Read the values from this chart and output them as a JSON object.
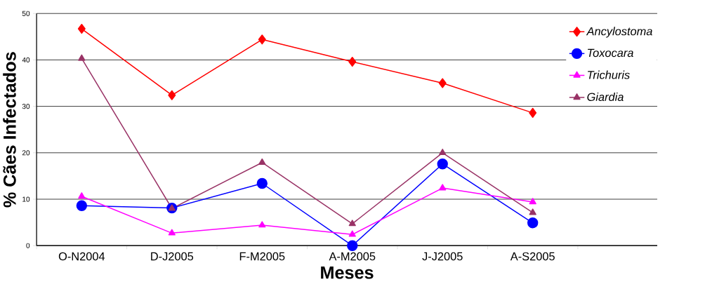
{
  "chart_data": {
    "type": "line",
    "xlabel": "Meses",
    "ylabel": "% Cães Infectados",
    "categories": [
      "O-N2004",
      "D-J2005",
      "F-M2005",
      "A-M2005",
      "J-J2005",
      "A-S2005"
    ],
    "series": [
      {
        "name": "Ancylostoma",
        "color": "#ff0000",
        "marker": "diamond",
        "values": [
          46.7,
          32.4,
          44.4,
          39.6,
          35.0,
          28.6
        ]
      },
      {
        "name": "Toxocara",
        "color": "#0000ff",
        "marker": "circle",
        "values": [
          8.6,
          8.1,
          13.4,
          0.0,
          17.6,
          4.9
        ]
      },
      {
        "name": "Trichuris",
        "color": "#ff00ff",
        "marker": "triangle",
        "values": [
          10.6,
          2.7,
          4.4,
          2.4,
          12.4,
          9.4
        ]
      },
      {
        "name": "Giardia",
        "color": "#993366",
        "marker": "triangle",
        "values": [
          40.3,
          8.0,
          17.9,
          4.7,
          20.0,
          7.1
        ]
      }
    ],
    "ylim": [
      0,
      50
    ],
    "yticks": [
      0,
      10,
      20,
      30,
      40,
      50
    ],
    "grid": "y",
    "legend": "right",
    "line_style": "solid"
  }
}
